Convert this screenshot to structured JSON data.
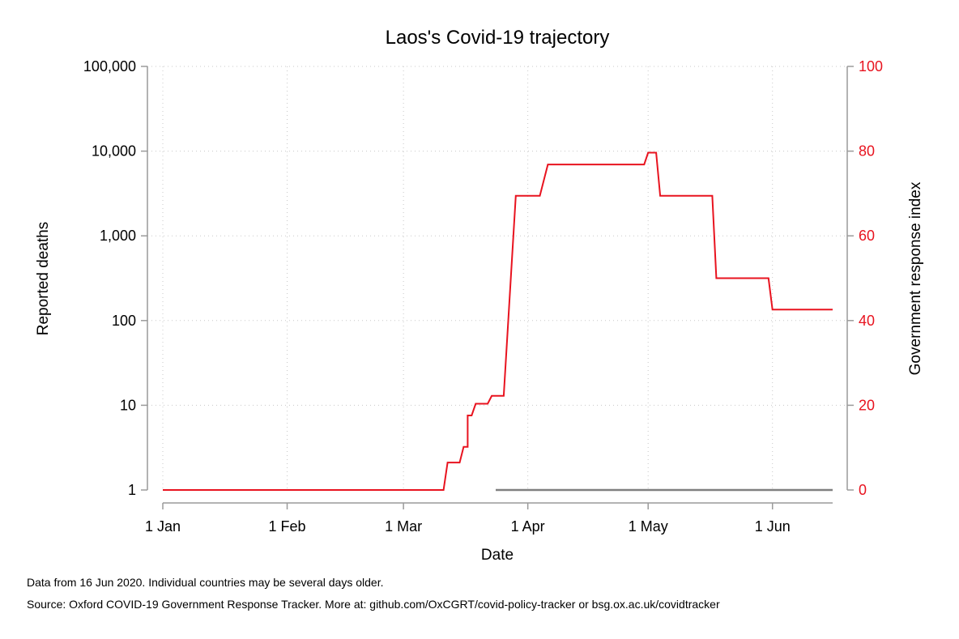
{
  "chart_data": {
    "type": "line",
    "title": "Laos's Covid-19 trajectory",
    "xlabel": "Date",
    "ylabel_left": "Reported deaths",
    "ylabel_right": "Government response index",
    "x_ticks": [
      "1 Jan",
      "1 Feb",
      "1 Mar",
      "1 Apr",
      "1 May",
      "1 Jun"
    ],
    "x_tick_dates": [
      "2020-01-01",
      "2020-02-01",
      "2020-03-01",
      "2020-04-01",
      "2020-05-01",
      "2020-06-01"
    ],
    "xlim": [
      "2020-01-01",
      "2020-06-16"
    ],
    "y_left": {
      "scale": "log",
      "range": [
        1,
        100000
      ],
      "ticks": [
        1,
        10,
        100,
        1000,
        10000,
        100000
      ],
      "tick_labels": [
        "1",
        "10",
        "100",
        "1,000",
        "10,000",
        "100,000"
      ]
    },
    "y_right": {
      "scale": "linear",
      "range": [
        0,
        100
      ],
      "ticks": [
        0,
        20,
        40,
        60,
        80,
        100
      ],
      "tick_labels": [
        "0",
        "20",
        "40",
        "60",
        "80",
        "100"
      ]
    },
    "grid": true,
    "series": [
      {
        "axis": "left",
        "color": "#808080",
        "points": [
          {
            "x": "2020-03-24",
            "y": 1
          },
          {
            "x": "2020-06-16",
            "y": 1
          }
        ]
      },
      {
        "axis": "right",
        "color": "#e8131f",
        "points": [
          {
            "x": "2020-01-01",
            "y": 0
          },
          {
            "x": "2020-03-11",
            "y": 0
          },
          {
            "x": "2020-03-12",
            "y": 6.48
          },
          {
            "x": "2020-03-15",
            "y": 6.48
          },
          {
            "x": "2020-03-16",
            "y": 10.19
          },
          {
            "x": "2020-03-17",
            "y": 10.19
          },
          {
            "x": "2020-03-17",
            "y": 17.59
          },
          {
            "x": "2020-03-18",
            "y": 17.59
          },
          {
            "x": "2020-03-19",
            "y": 20.37
          },
          {
            "x": "2020-03-22",
            "y": 20.37
          },
          {
            "x": "2020-03-23",
            "y": 22.22
          },
          {
            "x": "2020-03-26",
            "y": 22.22
          },
          {
            "x": "2020-03-29",
            "y": 69.44
          },
          {
            "x": "2020-04-04",
            "y": 69.44
          },
          {
            "x": "2020-04-06",
            "y": 76.85
          },
          {
            "x": "2020-04-30",
            "y": 76.85
          },
          {
            "x": "2020-05-01",
            "y": 79.63
          },
          {
            "x": "2020-05-03",
            "y": 79.63
          },
          {
            "x": "2020-05-04",
            "y": 69.44
          },
          {
            "x": "2020-05-17",
            "y": 69.44
          },
          {
            "x": "2020-05-18",
            "y": 50.0
          },
          {
            "x": "2020-05-31",
            "y": 50.0
          },
          {
            "x": "2020-06-01",
            "y": 42.59
          },
          {
            "x": "2020-06-16",
            "y": 42.59
          }
        ]
      }
    ]
  },
  "notes": {
    "line1": "Data from 16 Jun 2020. Individual countries may be several days older.",
    "line2": "Source: Oxford COVID-19 Government Response Tracker. More at: github.com/OxCGRT/covid-policy-tracker or bsg.ox.ac.uk/covidtracker"
  },
  "colors": {
    "response": "#e8131f",
    "deaths": "#808080",
    "axis": "#9a9a9a",
    "grid": "#c8c8c8"
  }
}
